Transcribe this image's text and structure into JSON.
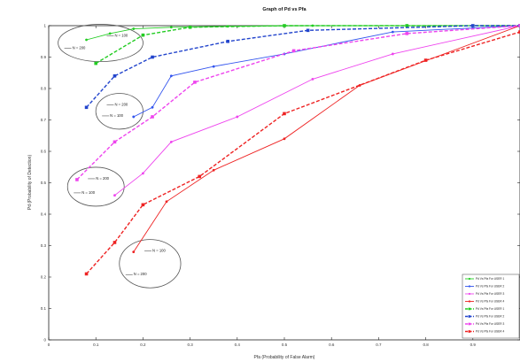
{
  "chart_data": {
    "type": "line",
    "title": "Graph of Pd vs Pfa",
    "xlabel": "Pfa (Probability of False Alarm)",
    "ylabel": "Pd (Probability of Detection)",
    "xlim": [
      0,
      1
    ],
    "ylim": [
      0,
      1
    ],
    "xticks": [
      "0",
      "0.1",
      "0.2",
      "0.3",
      "0.4",
      "0.5",
      "0.6",
      "0.7",
      "0.8",
      "0.9"
    ],
    "yticks": [
      "0",
      "0.1",
      "0.2",
      "0.3",
      "0.4",
      "0.5",
      "0.6",
      "0.7",
      "0.8",
      "0.9",
      "1"
    ],
    "grid": false,
    "legend_position": "bottom-right",
    "series": [
      {
        "name": "Pd Vs Pfa For USER 1",
        "color": "#22cc22",
        "dash": false,
        "marker": "circle",
        "x": [
          0.08,
          0.13,
          0.18,
          0.26,
          0.38,
          0.56,
          0.76,
          1.0
        ],
        "y": [
          0.955,
          0.975,
          0.99,
          0.995,
          0.998,
          1.0,
          1.0,
          1.0
        ]
      },
      {
        "name": "Pd Vs Pfa For USER 2",
        "color": "#3355ee",
        "dash": false,
        "marker": "circle",
        "x": [
          0.18,
          0.22,
          0.26,
          0.35,
          0.5,
          0.73,
          1.0
        ],
        "y": [
          0.71,
          0.74,
          0.84,
          0.87,
          0.91,
          0.98,
          1.0
        ]
      },
      {
        "name": "Pd Vs Pfa For USER 3",
        "color": "#ee44ee",
        "dash": false,
        "marker": "circle",
        "x": [
          0.14,
          0.2,
          0.26,
          0.4,
          0.56,
          0.73,
          1.0
        ],
        "y": [
          0.46,
          0.53,
          0.63,
          0.71,
          0.83,
          0.91,
          1.0
        ]
      },
      {
        "name": "Pd Vs Pfa For USER 4",
        "color": "#ee2222",
        "dash": false,
        "marker": "circle",
        "x": [
          0.18,
          0.25,
          0.35,
          0.5,
          0.66,
          1.0
        ],
        "y": [
          0.28,
          0.44,
          0.54,
          0.64,
          0.81,
          1.0
        ]
      },
      {
        "name": "Pd Vs Pfa For USER 1",
        "color": "#22cc22",
        "dash": true,
        "marker": "square",
        "x": [
          0.1,
          0.2,
          0.3,
          0.5,
          0.76,
          1.0
        ],
        "y": [
          0.88,
          0.97,
          0.995,
          1.0,
          1.0,
          1.0
        ]
      },
      {
        "name": "Pd Vs Pfa For USER 2",
        "color": "#2244cc",
        "dash": true,
        "marker": "square",
        "x": [
          0.08,
          0.14,
          0.22,
          0.38,
          0.55,
          0.9,
          1.0
        ],
        "y": [
          0.74,
          0.84,
          0.9,
          0.95,
          0.985,
          1.0,
          1.0
        ]
      },
      {
        "name": "Pd Vs Pfa For USER 3",
        "color": "#ee44ee",
        "dash": true,
        "marker": "square",
        "x": [
          0.06,
          0.14,
          0.22,
          0.31,
          0.52,
          0.76,
          1.0
        ],
        "y": [
          0.51,
          0.63,
          0.71,
          0.82,
          0.92,
          0.975,
          1.0
        ]
      },
      {
        "name": "Pd Vs Pfa For USER 4",
        "color": "#ee2222",
        "dash": true,
        "marker": "square",
        "x": [
          0.08,
          0.14,
          0.2,
          0.32,
          0.5,
          0.8,
          1.0
        ],
        "y": [
          0.21,
          0.31,
          0.43,
          0.52,
          0.72,
          0.89,
          0.98
        ]
      }
    ],
    "annotations": [
      {
        "text": "N = 100",
        "x": 0.14,
        "y": 0.965
      },
      {
        "text": "N = 200",
        "x": 0.05,
        "y": 0.925
      },
      {
        "text": "N = 200",
        "x": 0.14,
        "y": 0.745
      },
      {
        "text": "N = 100",
        "x": 0.13,
        "y": 0.71
      },
      {
        "text": "N = 200",
        "x": 0.1,
        "y": 0.51
      },
      {
        "text": "N = 100",
        "x": 0.07,
        "y": 0.465
      },
      {
        "text": "N = 100",
        "x": 0.22,
        "y": 0.28
      },
      {
        "text": "N = 200",
        "x": 0.18,
        "y": 0.205
      }
    ]
  }
}
